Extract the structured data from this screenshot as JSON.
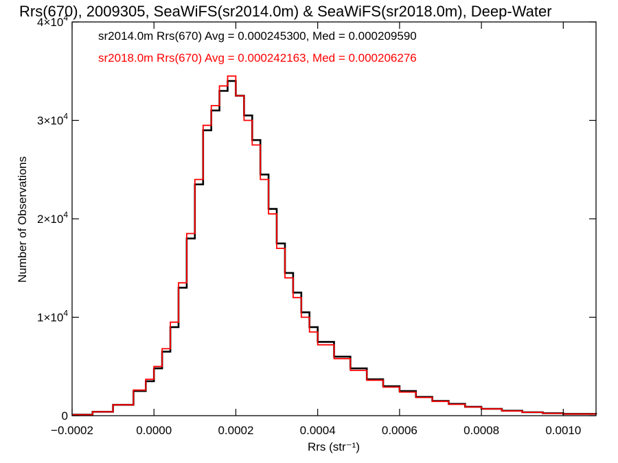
{
  "chart_data": {
    "type": "line",
    "title": "Rrs(670), 2009305, SeaWiFS(sr2014.0m) & SeaWiFS(sr2018.0m), Deep-Water",
    "xlabel": "Rrs (str⁻¹)",
    "ylabel": "Number of Observations",
    "xlim": [
      -0.0002,
      0.00108
    ],
    "ylim": [
      0,
      40000
    ],
    "x_ticks": [
      {
        "value": -0.0002,
        "label": "−0.0002"
      },
      {
        "value": 0.0,
        "label": "0.0000"
      },
      {
        "value": 0.0002,
        "label": "0.0002"
      },
      {
        "value": 0.0004,
        "label": "0.0004"
      },
      {
        "value": 0.0006,
        "label": "0.0006"
      },
      {
        "value": 0.0008,
        "label": "0.0008"
      },
      {
        "value": 0.001,
        "label": "0.0010"
      }
    ],
    "y_ticks": [
      {
        "value": 0,
        "mant": "0",
        "exp": ""
      },
      {
        "value": 10000,
        "mant": "1×10",
        "exp": "4"
      },
      {
        "value": 20000,
        "mant": "2×10",
        "exp": "4"
      },
      {
        "value": 30000,
        "mant": "3×10",
        "exp": "4"
      },
      {
        "value": 40000,
        "mant": "4×10",
        "exp": "4"
      }
    ],
    "grid": false,
    "legend_position": "top-left",
    "series": [
      {
        "name": "sr2014.0m Rrs(670)",
        "color": "#000000",
        "legend": "sr2014.0m Rrs(670) Avg = 0.000245300, Med = 0.000209590",
        "x": [
          -0.0002,
          -0.00015,
          -0.0001,
          -5e-05,
          -2e-05,
          0.0,
          2e-05,
          4e-05,
          6e-05,
          8e-05,
          0.0001,
          0.00012,
          0.00014,
          0.00016,
          0.00018,
          0.0002,
          0.00022,
          0.00024,
          0.00026,
          0.00028,
          0.0003,
          0.00032,
          0.00034,
          0.00036,
          0.00038,
          0.0004,
          0.00044,
          0.00048,
          0.00052,
          0.00056,
          0.0006,
          0.00064,
          0.00068,
          0.00072,
          0.00076,
          0.0008,
          0.00085,
          0.0009,
          0.00095,
          0.001,
          0.00108
        ],
        "values": [
          100,
          400,
          1100,
          2500,
          3500,
          4800,
          6500,
          9000,
          13000,
          18000,
          23500,
          29000,
          31000,
          33000,
          34000,
          32500,
          30500,
          28000,
          24500,
          21000,
          17500,
          14500,
          12500,
          10500,
          9000,
          7500,
          6000,
          4800,
          3700,
          3000,
          2500,
          1900,
          1500,
          1200,
          900,
          700,
          500,
          350,
          250,
          180,
          120
        ]
      },
      {
        "name": "sr2018.0m Rrs(670)",
        "color": "#ff0000",
        "legend": "sr2018.0m Rrs(670) Avg = 0.000242163, Med = 0.000206276",
        "x": [
          -0.0002,
          -0.00015,
          -0.0001,
          -5e-05,
          -2e-05,
          0.0,
          2e-05,
          4e-05,
          6e-05,
          8e-05,
          0.0001,
          0.00012,
          0.00014,
          0.00016,
          0.00018,
          0.0002,
          0.00022,
          0.00024,
          0.00026,
          0.00028,
          0.0003,
          0.00032,
          0.00034,
          0.00036,
          0.00038,
          0.0004,
          0.00044,
          0.00048,
          0.00052,
          0.00056,
          0.0006,
          0.00064,
          0.00068,
          0.00072,
          0.00076,
          0.0008,
          0.00085,
          0.0009,
          0.00095,
          0.001,
          0.00108
        ],
        "values": [
          100,
          400,
          1100,
          2600,
          3700,
          5000,
          6800,
          9500,
          13500,
          18500,
          24000,
          29500,
          31500,
          33500,
          34500,
          32500,
          30000,
          27500,
          24000,
          20500,
          17000,
          14000,
          12000,
          10000,
          8500,
          7200,
          5800,
          4600,
          3600,
          2900,
          2400,
          1850,
          1450,
          1150,
          880,
          680,
          480,
          340,
          240,
          170,
          110
        ]
      }
    ]
  }
}
